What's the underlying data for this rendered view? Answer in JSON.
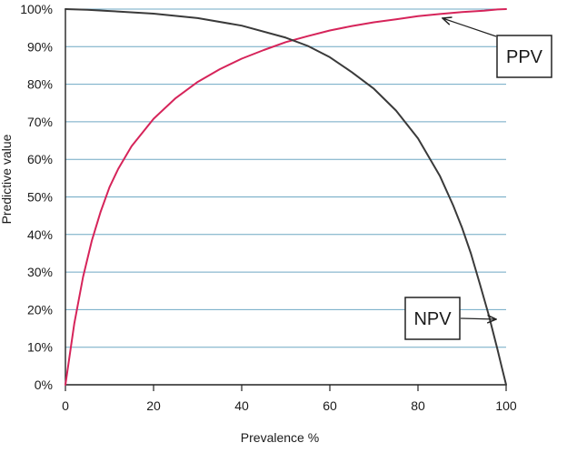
{
  "chart_data": {
    "type": "line",
    "xlabel": "Prevalence %",
    "ylabel": "Predictive value",
    "xlim": [
      0,
      100
    ],
    "ylim": [
      0,
      100
    ],
    "x_ticks": [
      "0",
      "20",
      "40",
      "60",
      "80",
      "100"
    ],
    "y_ticks": [
      "0%",
      "10%",
      "20%",
      "30%",
      "40%",
      "50%",
      "60%",
      "70%",
      "80%",
      "90%",
      "100%"
    ],
    "grid": "horizontal",
    "colors": {
      "grid": "#6fa8c4",
      "ppv": "#d6245a",
      "npv": "#3a3a3a",
      "axis": "#222222"
    },
    "series": [
      {
        "name": "PPV",
        "x": [
          0,
          2,
          4,
          6,
          8,
          10,
          12,
          15,
          20,
          25,
          30,
          35,
          40,
          45,
          50,
          55,
          60,
          65,
          70,
          75,
          80,
          85,
          90,
          95,
          98,
          100
        ],
        "y": [
          0,
          16.2,
          28.7,
          38.4,
          46.1,
          52.6,
          57.5,
          63.5,
          70.8,
          76.3,
          80.6,
          84,
          86.8,
          89.1,
          91.2,
          92.8,
          94.3,
          95.5,
          96.5,
          97.3,
          98.1,
          98.7,
          99.2,
          99.6,
          99.9,
          100
        ]
      },
      {
        "name": "NPV",
        "x": [
          0,
          5,
          10,
          20,
          30,
          40,
          50,
          55,
          60,
          65,
          70,
          75,
          80,
          85,
          88,
          90,
          92,
          94,
          96,
          98,
          99,
          100
        ],
        "y": [
          100,
          99.8,
          99.5,
          98.8,
          97.6,
          95.6,
          92.4,
          90.2,
          87.2,
          83.2,
          78.8,
          73,
          65.6,
          55.5,
          47.7,
          41.8,
          35,
          27,
          18.8,
          9.6,
          4.8,
          0
        ]
      }
    ],
    "annotations": [
      {
        "label": "PPV",
        "points_to": "PPV"
      },
      {
        "label": "NPV",
        "points_to": "NPV"
      }
    ]
  }
}
